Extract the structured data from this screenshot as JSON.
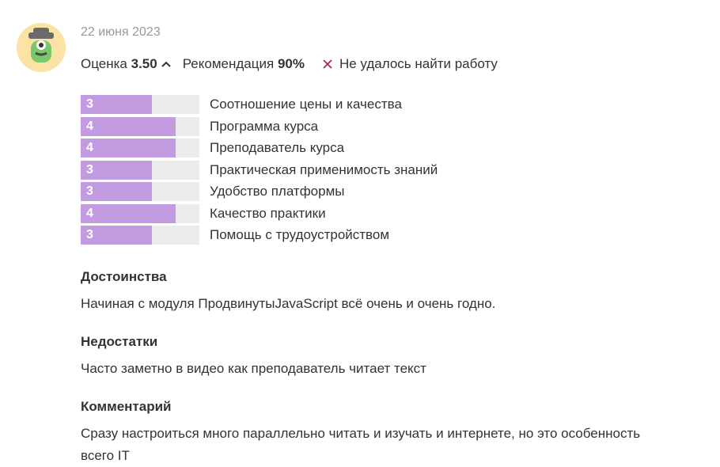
{
  "review": {
    "date": "22 июня 2023",
    "score_label": "Оценка",
    "score": "3.50",
    "recommendation_label": "Рекомендация",
    "recommendation": "90%",
    "outcome": "Не удалось найти работу",
    "ratings": {
      "xlim": [
        0,
        5
      ],
      "color": "#c39be0",
      "track_color": "#ececec",
      "items": [
        {
          "label": "Соотношение цены и качества",
          "value": 3
        },
        {
          "label": "Программа курса",
          "value": 4
        },
        {
          "label": "Преподаватель курса",
          "value": 4
        },
        {
          "label": "Практическая применимость знаний",
          "value": 3
        },
        {
          "label": "Удобство платформы",
          "value": 3
        },
        {
          "label": "Качество практики",
          "value": 4
        },
        {
          "label": "Помощь с трудоустройством",
          "value": 3
        }
      ]
    },
    "sections": [
      {
        "title": "Достоинства",
        "text": "Начиная с модуля ПродвинутыJavaScript всё очень и очень годно."
      },
      {
        "title": "Недостатки",
        "text": "Часто заметно в видео как преподаватель читает текст"
      },
      {
        "title": "Комментарий",
        "text": "Сразу настроиться много параллельно читать и изучать и интернете, но это особенность всего IT"
      }
    ]
  }
}
